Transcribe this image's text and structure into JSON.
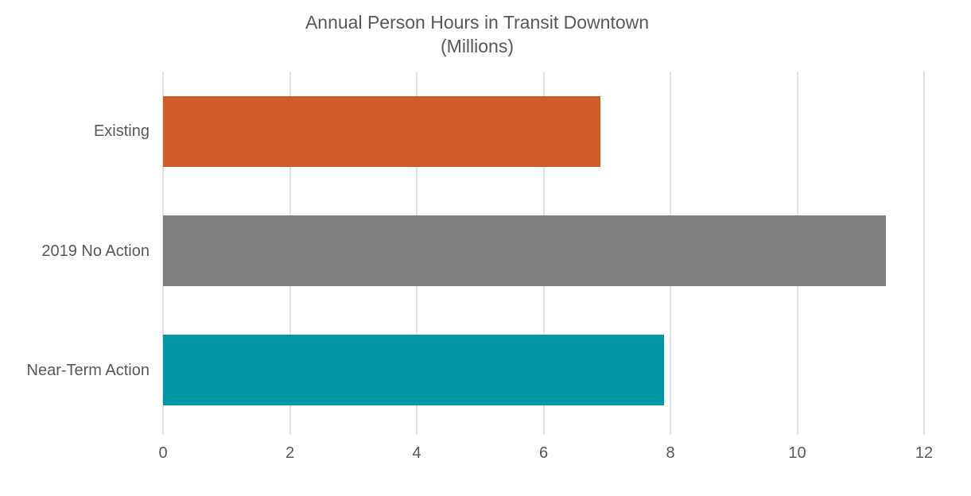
{
  "chart": {
    "title_line1": "Annual Person Hours in Transit Downtown",
    "title_line2": "(Millions)"
  },
  "chart_data": {
    "type": "bar",
    "orientation": "horizontal",
    "title": "Annual Person Hours in Transit Downtown (Millions)",
    "categories": [
      "Existing",
      "2019 No Action",
      "Near-Term Action"
    ],
    "values": [
      6.9,
      11.4,
      7.9
    ],
    "xlabel": "",
    "ylabel": "",
    "xlim": [
      0,
      12
    ],
    "xticks": [
      0,
      2,
      4,
      6,
      8,
      10,
      12
    ],
    "grid": true,
    "legend": false,
    "bar_colors": [
      "#D15C2B",
      "#7F7F7F",
      "#0096A4"
    ],
    "gridline_color": "#E2E2E2",
    "text_color": "#595959",
    "background": "#FFFFFF"
  }
}
